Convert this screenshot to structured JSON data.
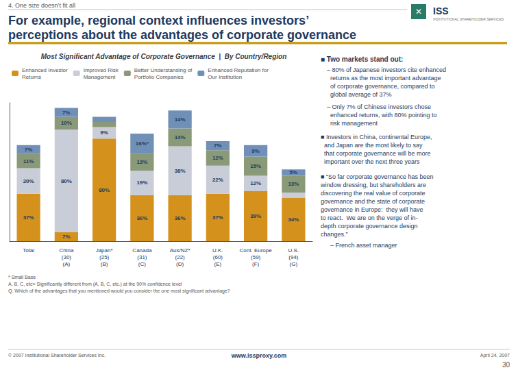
{
  "chart_data": {
    "type": "bar",
    "title": "Most Significant Advantage of Corporate Governance  |  By Country/Region",
    "categories": [
      "Total",
      "China\n(30)\n(A)",
      "Japan*\n(25)\n(B)",
      "Canada\n(31)\n(C)",
      "Aus/NZ*\n(22)\n(D)",
      "U.K.\n(60)\n(E)",
      "Cont. Europe\n(59)\n(F)",
      "U.S.\n(94)\n(G)"
    ],
    "series": [
      {
        "name": "Enhanced Investor\nReturns",
        "color": "#d4921c",
        "values": [
          37,
          7,
          80,
          36,
          36,
          37,
          39,
          34
        ],
        "value_labels": [
          "37%",
          "7%",
          "80%",
          "36%",
          "36%",
          "37%",
          "39%",
          "34%"
        ]
      },
      {
        "name": "Improved Risk\nManagement",
        "color": "#c8cdd8",
        "values": [
          20,
          80,
          9,
          19,
          38,
          22,
          12,
          4
        ],
        "value_labels": [
          "20%",
          "80%",
          "9%",
          "19%",
          "38%",
          "22%",
          "12%",
          null
        ]
      },
      {
        "name": "Better Understanding of\nPortfolio Companies",
        "color": "#8a9a78",
        "values": [
          11,
          10,
          4,
          13,
          14,
          12,
          15,
          13
        ],
        "value_labels": [
          "11%",
          "10%",
          null,
          "13%",
          "14%",
          "12%",
          "15%",
          "13%"
        ]
      },
      {
        "name": "Enhanced Reputation for\nOur Institution",
        "color": "#7090b8",
        "values": [
          7,
          7,
          4,
          16,
          14,
          7,
          9,
          5
        ],
        "value_labels": [
          "7%",
          "7%",
          null,
          "16%*",
          "14%",
          "7%",
          "9%",
          "5%"
        ]
      }
    ],
    "stacked": true,
    "data_labels": true,
    "ylim": [
      0,
      108
    ],
    "tick_labels": "x",
    "grid": false,
    "legend": "top",
    "annotations": [
      "4. One size doesn’t fit all",
      "For example, regional context influences investors’",
      "perceptions about the advantages of corporate governance",
      "✕",
      "ISS",
      "INSTITUTIONAL SHAREHOLDER SERVICES",
      "■ Two markets stand out:",
      "– 80% of Japanese investors cite enhanced\n  returns as the most important advantage\n  of corporate governance, compared to\n  global average of 37%",
      "– Only 7% of Chinese investors chose\n  enhanced returns, with 80% pointing to\n  risk management",
      "■ Investors in China, continental Europe,\n  and Japan are the most likely to say\n  that corporate governance will be more\n  important over the next three years",
      "■ “So far corporate governance has been\nwindow dressing, but shareholders are\ndiscovering the real value of corporate\ngovernance and the state of corporate\ngovernance in Europe:  they will have\nto react.  We are on the verge of in-\ndepth corporate governance design\nchanges.”",
      "– French asset manager",
      "* Small Base",
      "A, B, C, etc= Significantly different from (A, B, C, etc.) at the 90% confidence level",
      "Q. Which of the advantages that you mentioned would you consider the one most significant advantage?",
      "© 2007 Institutional Shareholder Services Inc.",
      "www.issproxy.com",
      "April 24, 2007",
      "30"
    ]
  }
}
